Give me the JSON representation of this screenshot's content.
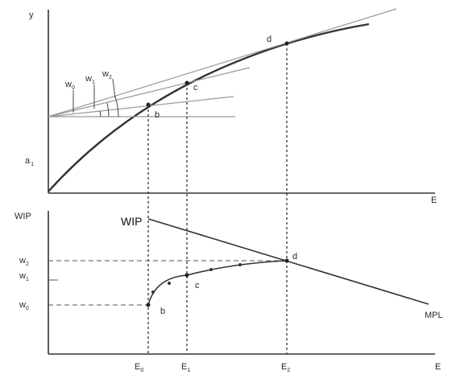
{
  "top_panel": {
    "y_axis_label": "y",
    "x_axis_label": "E",
    "intercept_label": "a",
    "intercept_sub": "1",
    "point_labels": [
      "b",
      "c",
      "d"
    ],
    "wage_labels": [
      {
        "base": "w",
        "sub": "0"
      },
      {
        "base": "w",
        "sub": "1"
      },
      {
        "base": "w",
        "sub": "2"
      }
    ]
  },
  "bottom_panel": {
    "y_axis_label": "WIP",
    "x_axis_label": "E",
    "wip_curve_label": "WIP",
    "mpl_label": "MPL",
    "point_labels": [
      "b",
      "c",
      "d"
    ],
    "y_ticks": [
      {
        "base": "w",
        "sub": "2"
      },
      {
        "base": "w",
        "sub": "1"
      },
      {
        "base": "w",
        "sub": "0"
      }
    ],
    "x_ticks": [
      {
        "base": "E",
        "sub": "0"
      },
      {
        "base": "E",
        "sub": "1"
      },
      {
        "base": "E",
        "sub": "2"
      }
    ]
  }
}
